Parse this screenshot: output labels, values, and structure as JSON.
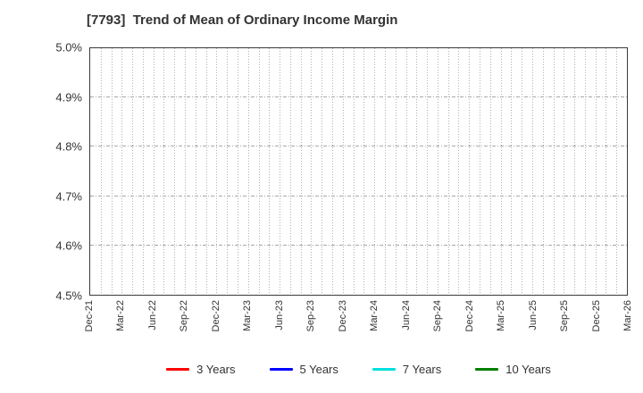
{
  "chart": {
    "title": "[7793]  Trend of Mean of Ordinary Income Margin"
  },
  "chart_data": {
    "type": "line",
    "title": "[7793]  Trend of Mean of Ordinary Income Margin",
    "xlabel": "",
    "ylabel": "",
    "x_tick_labels": [
      "Dec-21",
      "Mar-22",
      "Jun-22",
      "Sep-22",
      "Dec-22",
      "Mar-23",
      "Jun-23",
      "Sep-23",
      "Dec-23",
      "Mar-24",
      "Jun-24",
      "Sep-24",
      "Dec-24",
      "Mar-25",
      "Jun-25",
      "Sep-25",
      "Dec-25",
      "Mar-26"
    ],
    "months_per_label_interval": 3,
    "y_tick_labels": [
      "4.5%",
      "4.6%",
      "4.7%",
      "4.8%",
      "4.9%",
      "5.0%"
    ],
    "ylim": [
      4.5,
      5.0
    ],
    "grid": "on",
    "legend_position": "bottom",
    "series": [
      {
        "name": "3 Years",
        "color": "#ff0000",
        "values": []
      },
      {
        "name": "5 Years",
        "color": "#0000ff",
        "values": []
      },
      {
        "name": "7 Years",
        "color": "#00e0e0",
        "values": []
      },
      {
        "name": "10 Years",
        "color": "#008000",
        "values": []
      }
    ],
    "colors": {
      "frame": "#3a3a3a",
      "grid": "#b0b0b0",
      "text": "#333333",
      "background": "#ffffff"
    }
  }
}
